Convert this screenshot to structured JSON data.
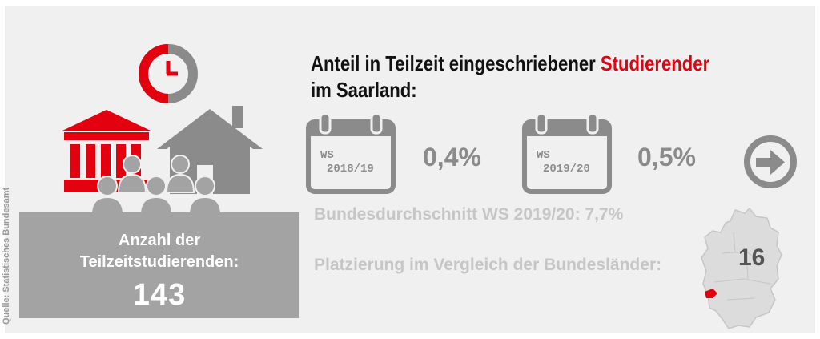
{
  "source": "Quelle: Statistisches Bundesamt",
  "count": {
    "label_line1": "Anzahl der",
    "label_line2": "Teilzeitstudierenden:",
    "value": "143"
  },
  "headline": {
    "part1": "Anteil in Teilzeit eingeschriebener ",
    "accent": "Studierender",
    "part2": "im Saarland:"
  },
  "semesters": [
    {
      "label_top": "WS",
      "label_bottom": "2018/19",
      "value": "0,4%"
    },
    {
      "label_top": "WS",
      "label_bottom": "2019/20",
      "value": "0,5%"
    }
  ],
  "federal_average": "Bundesdurchschnitt WS 2019/20: 7,7%",
  "ranking": {
    "label": "Platzierung im Vergleich der Bundesländer:",
    "value": "16"
  },
  "icons": [
    "clock-icon",
    "university-icon",
    "house-icon",
    "people-icon",
    "calendar-icon",
    "arrow-right-icon",
    "germany-map-icon"
  ],
  "colors": {
    "accent": "#e3000f",
    "gray": "#8b8b8b",
    "light_gray": "#c6c6c6",
    "box": "#a3a3a3"
  }
}
